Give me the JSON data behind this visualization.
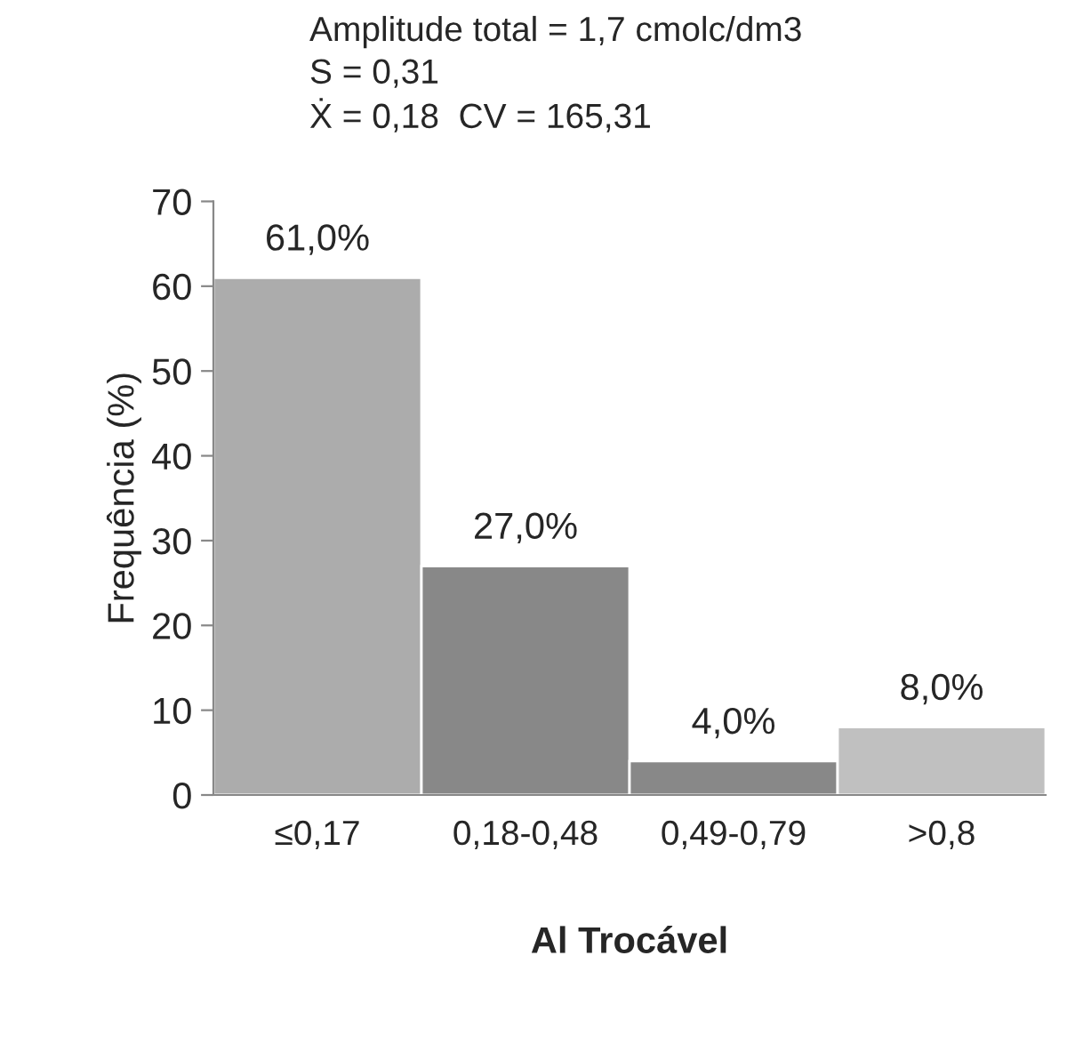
{
  "chart_data": {
    "type": "bar",
    "title": "Amplitude total = 1,7 cmolc/dm3",
    "annotations": [
      "S = 0,31",
      "Ẋ = 0,18  CV = 165,31"
    ],
    "xlabel": "Al Trocável",
    "ylabel": "Frequência (%)",
    "categories": [
      "≤0,17",
      "0,18-0,48",
      "0,49-0,79",
      ">0,8"
    ],
    "values": [
      61,
      27,
      4,
      8
    ],
    "colors": [
      "#acacac",
      "#888888",
      "#888888",
      "#c0c0c0"
    ],
    "value_labels": [
      "61,0%",
      "27,0%",
      "4,0%",
      "8,0%"
    ],
    "ylim": [
      0,
      70
    ],
    "yticks": [
      0,
      10,
      20,
      30,
      40,
      50,
      60,
      70
    ],
    "grid": false,
    "legend": false
  }
}
